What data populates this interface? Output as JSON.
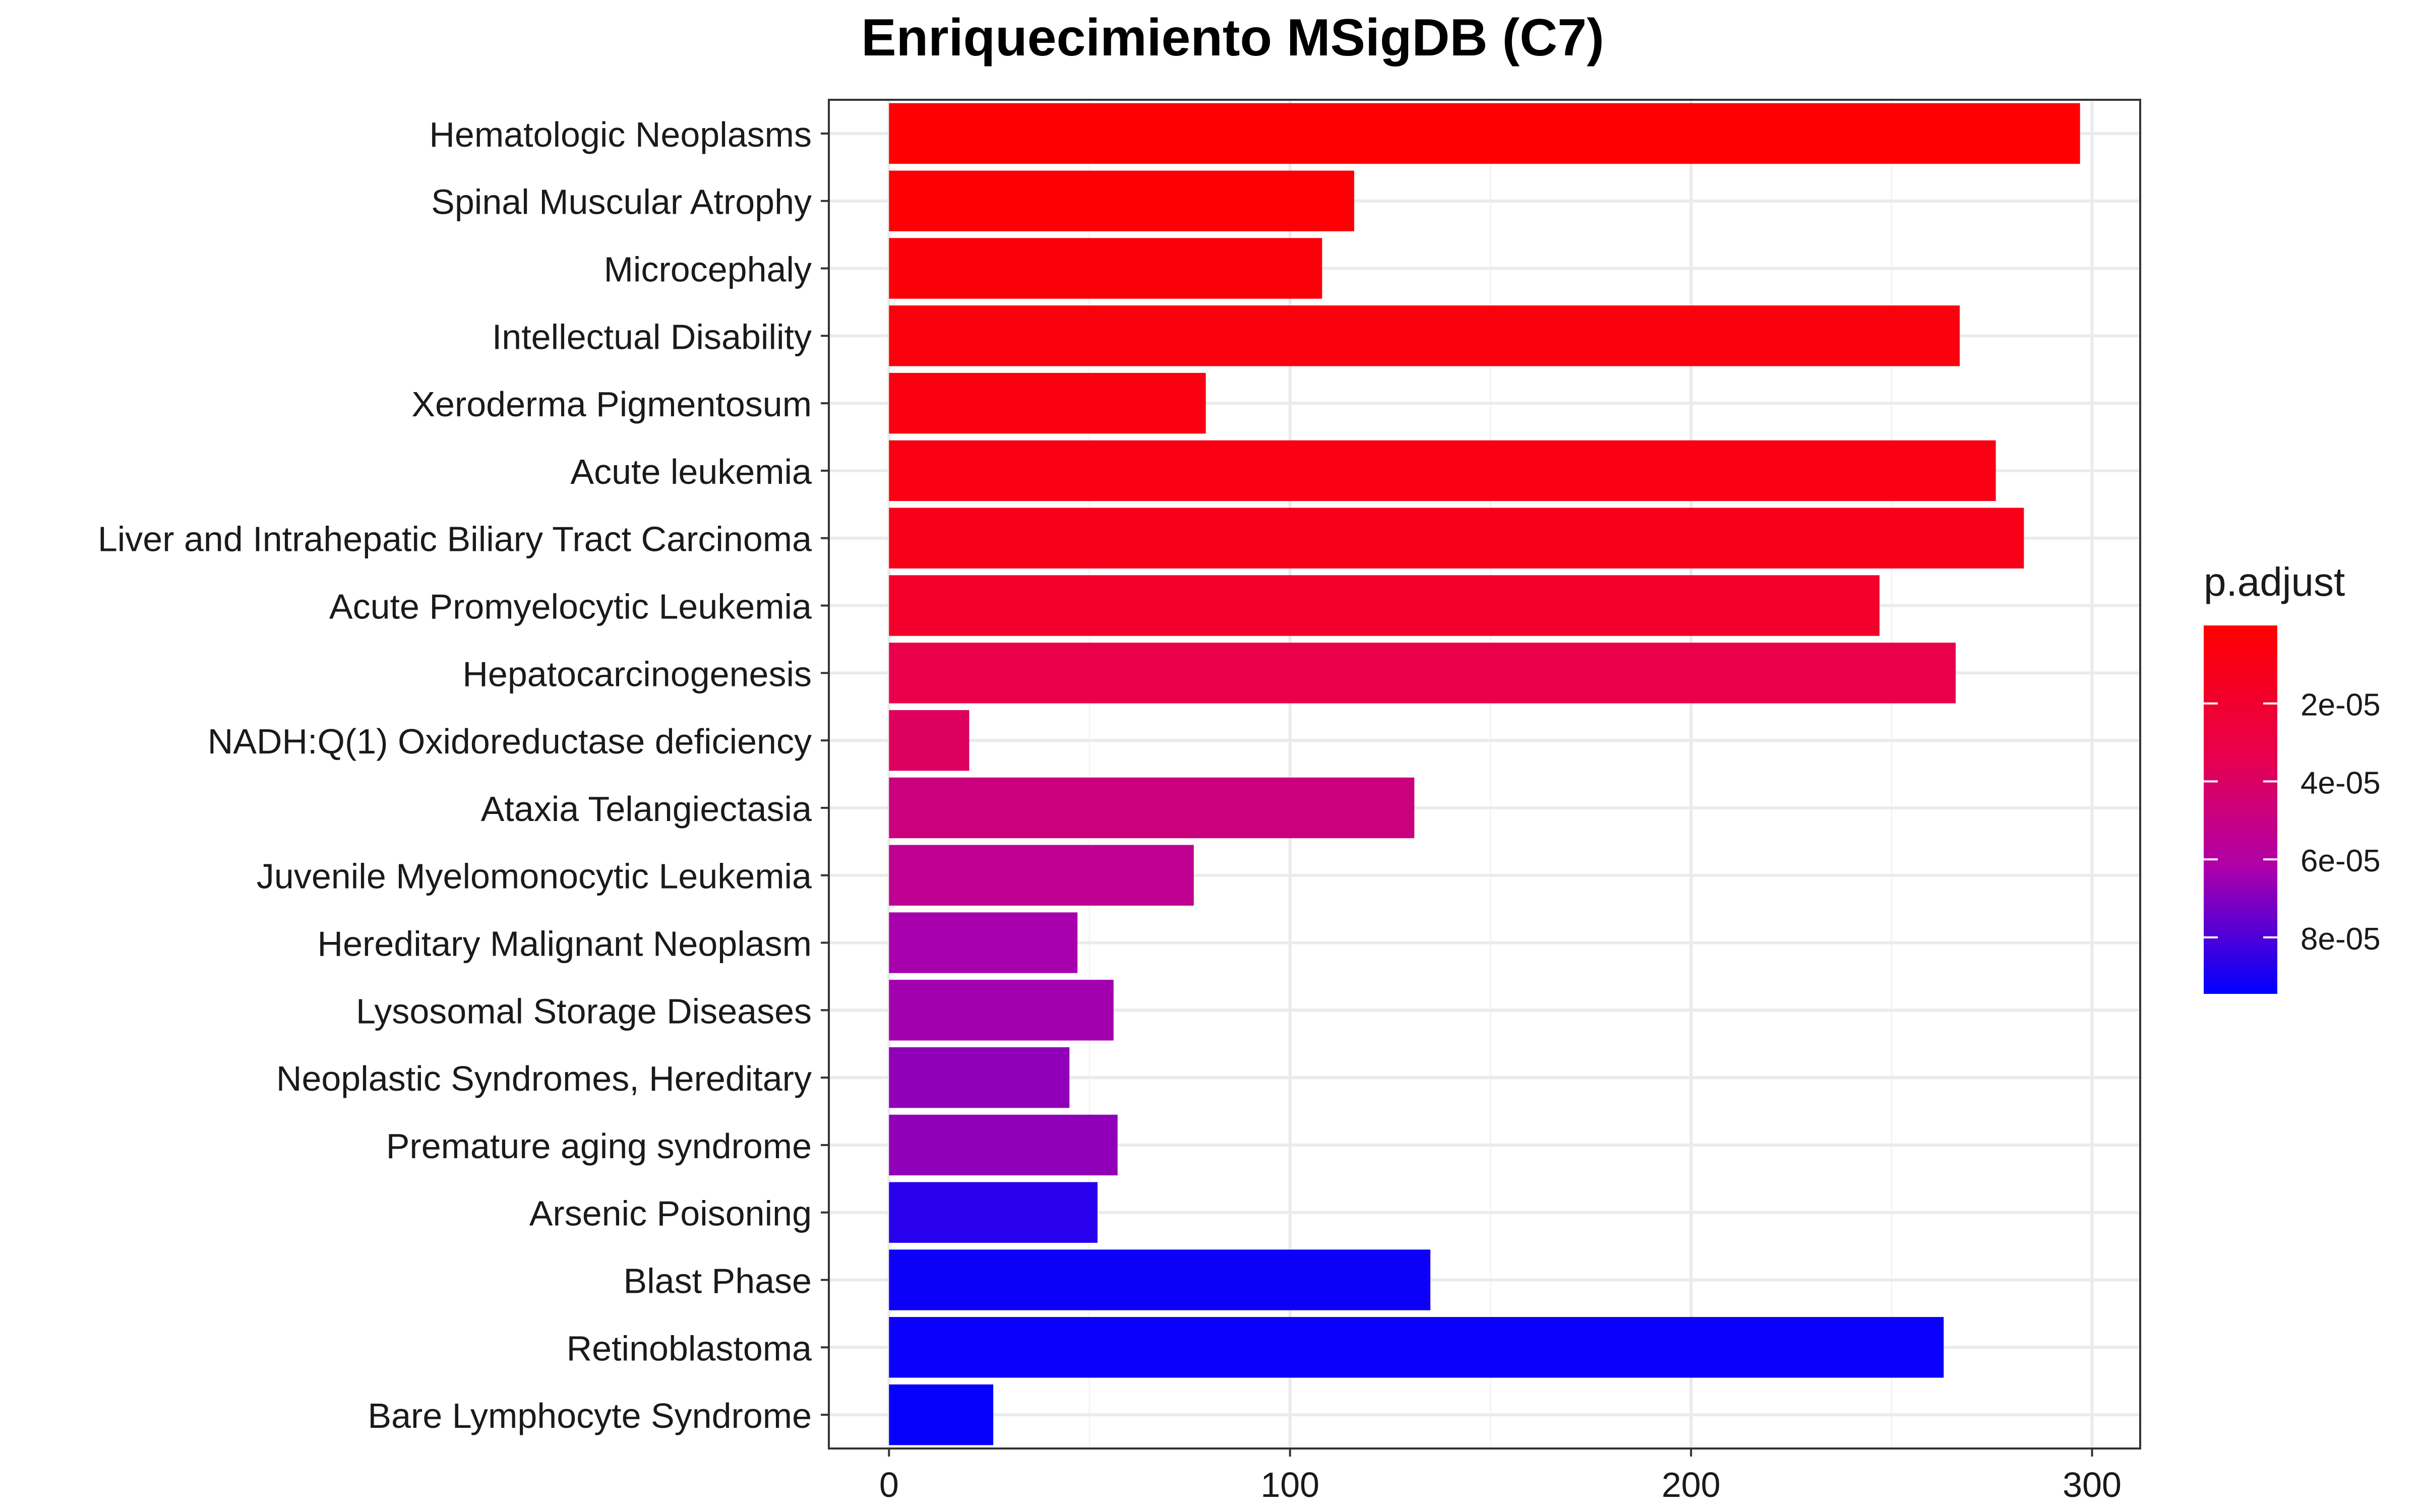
{
  "chart_data": {
    "type": "bar",
    "orientation": "horizontal",
    "title": "Enriquecimiento MSigDB (C7)",
    "xlabel": "",
    "ylabel": "",
    "xlim": [
      -15,
      312
    ],
    "x_ticks": [
      0,
      100,
      200,
      300
    ],
    "x_tick_labels": [
      "0",
      "100",
      "200",
      "300"
    ],
    "grid": true,
    "categories": [
      "Hematologic Neoplasms",
      "Spinal Muscular Atrophy",
      "Microcephaly",
      "Intellectual Disability",
      "Xeroderma Pigmentosum",
      "Acute leukemia",
      "Liver and Intrahepatic Biliary Tract Carcinoma",
      "Acute Promyelocytic Leukemia",
      "Hepatocarcinogenesis",
      "NADH:Q(1) Oxidoreductase deficiency",
      "Ataxia Telangiectasia",
      "Juvenile Myelomonocytic Leukemia",
      "Hereditary Malignant Neoplasm",
      "Lysosomal Storage Diseases",
      "Neoplastic Syndromes, Hereditary",
      "Premature aging syndrome",
      "Arsenic Poisoning",
      "Blast Phase",
      "Retinoblastoma",
      "Bare Lymphocyte Syndrome"
    ],
    "values": [
      297,
      116,
      108,
      267,
      79,
      276,
      283,
      247,
      266,
      20,
      131,
      76,
      47,
      56,
      45,
      57,
      52,
      135,
      263,
      26
    ],
    "p_adjust": [
      5e-07,
      2.5e-06,
      4e-06,
      5.5e-06,
      7e-06,
      8.5e-06,
      1e-05,
      1.85e-05,
      3.3e-05,
      3.85e-05,
      4.8e-05,
      5.4e-05,
      6.3e-05,
      6.4e-05,
      6.75e-05,
      6.75e-05,
      8.7e-05,
      9.2e-05,
      9.25e-05,
      9.35e-05
    ],
    "legend": {
      "title": "p.adjust",
      "placement": "right",
      "min": 0,
      "max": 9.45e-05,
      "ticks": [
        2e-05,
        4e-05,
        6e-05,
        8e-05
      ],
      "tick_labels": [
        "2e-05",
        "4e-05",
        "6e-05",
        "8e-05"
      ],
      "color_low": "#FF0000",
      "color_high": "#0000FF"
    },
    "colors": {
      "panel_border": "#333333",
      "grid_major": "#EBEBEB",
      "grid_minor": "#F4F4F4",
      "text": "#1a1a1a"
    }
  }
}
